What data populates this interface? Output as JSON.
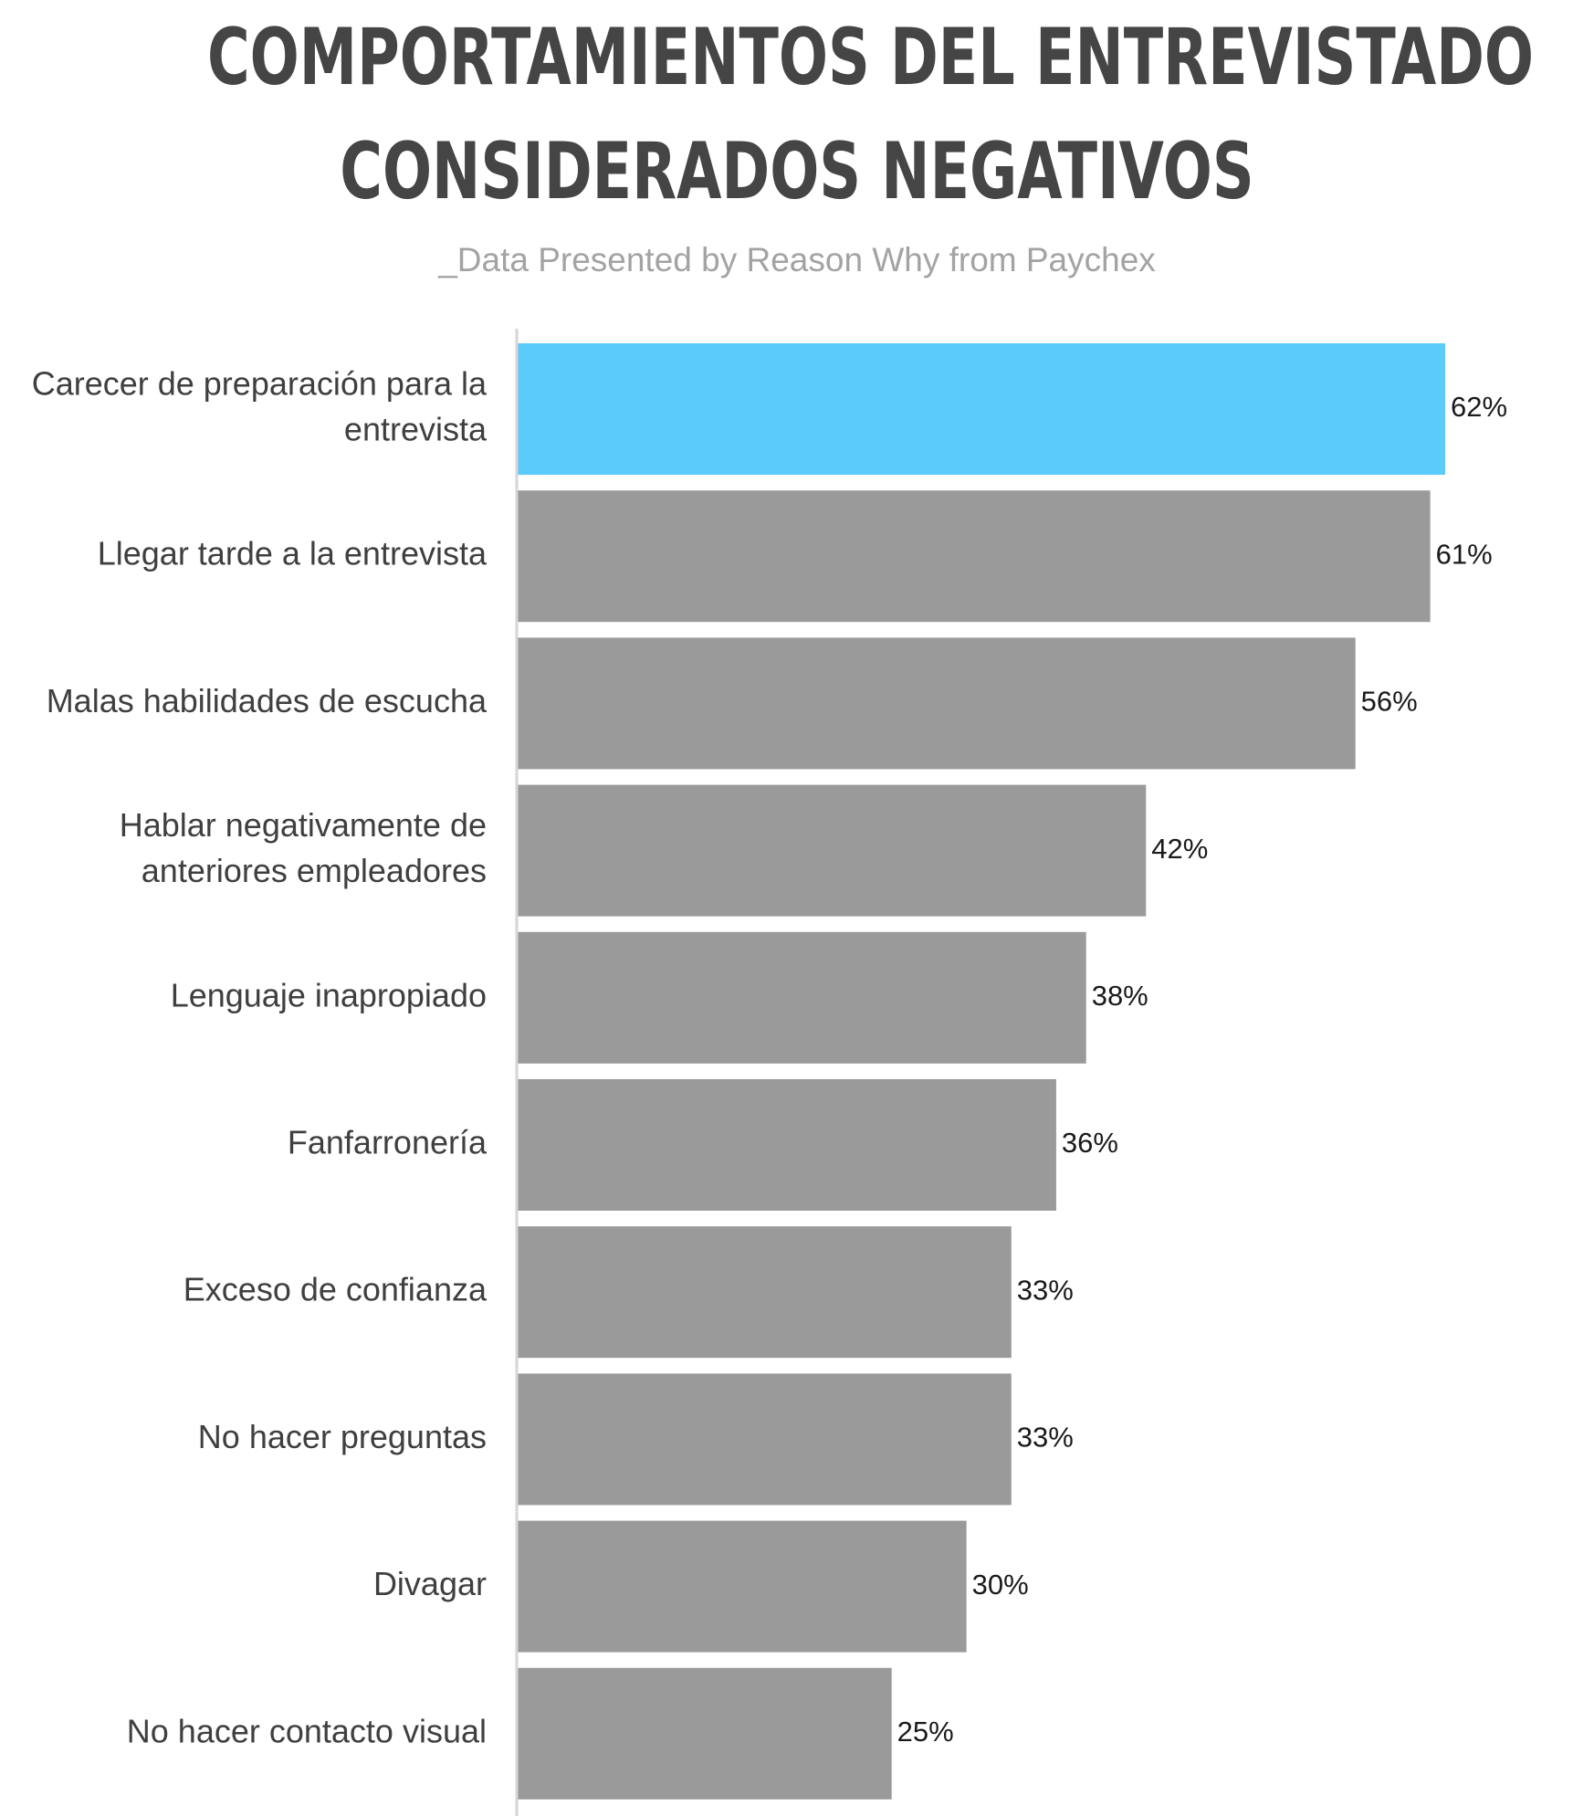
{
  "title_lines": [
    "COMPORTAMIENTOS DEL ENTREVISTADO",
    "CONSIDERADOS NEGATIVOS"
  ],
  "subtitle": "_Data Presented by Reason Why from Paychex",
  "colors": {
    "highlight": "#5bcbfb",
    "bar": "#9a9a9a",
    "axis": "#d6d6d6",
    "title": "#454545",
    "subtitle": "#a3a3a3",
    "category_text": "#3f3f3f",
    "value_text": "#1a1a1a"
  },
  "chart_data": {
    "type": "bar",
    "orientation": "horizontal",
    "title": "COMPORTAMIENTOS DEL ENTREVISTADO CONSIDERADOS NEGATIVOS",
    "subtitle": "_Data Presented by Reason Why from Paychex",
    "categories": [
      [
        "Carecer de preparación para la",
        "entrevista"
      ],
      [
        "Llegar tarde a la entrevista"
      ],
      [
        "Malas habilidades de escucha"
      ],
      [
        "Hablar negativamente de",
        "anteriores empleadores"
      ],
      [
        "Lenguaje inapropiado"
      ],
      [
        "Fanfarronería"
      ],
      [
        "Exceso de confianza"
      ],
      [
        "No hacer preguntas"
      ],
      [
        "Divagar"
      ],
      [
        "No hacer contacto visual"
      ]
    ],
    "values": [
      62,
      61,
      56,
      42,
      38,
      36,
      33,
      33,
      30,
      25
    ],
    "value_labels": [
      "62%",
      "61%",
      "56%",
      "42%",
      "38%",
      "36%",
      "33%",
      "33%",
      "30%",
      "25%"
    ],
    "highlight_index": 0,
    "xlim": [
      0,
      62
    ],
    "grid": false,
    "legend": "none"
  }
}
